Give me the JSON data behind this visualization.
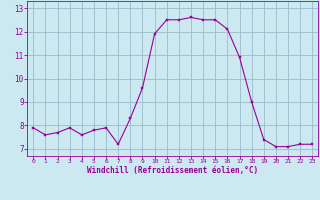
{
  "hours": [
    0,
    1,
    2,
    3,
    4,
    5,
    6,
    7,
    8,
    9,
    10,
    11,
    12,
    13,
    14,
    15,
    16,
    17,
    18,
    19,
    20,
    21,
    22,
    23
  ],
  "values": [
    7.9,
    7.6,
    7.7,
    7.9,
    7.6,
    7.8,
    7.9,
    7.2,
    8.3,
    9.6,
    11.9,
    12.5,
    12.5,
    12.6,
    12.5,
    12.5,
    12.1,
    10.9,
    9.0,
    7.4,
    7.1,
    7.1,
    7.2,
    7.2
  ],
  "line_color": "#990099",
  "marker_color": "#990099",
  "bg_color": "#cce8f0",
  "grid_color": "#99bbcc",
  "xlabel": "Windchill (Refroidissement éolien,°C)",
  "xlabel_color": "#990099",
  "tick_color": "#990099",
  "ylim": [
    6.7,
    13.3
  ],
  "xlim": [
    -0.5,
    23.5
  ],
  "yticks": [
    7,
    8,
    9,
    10,
    11,
    12,
    13
  ],
  "xticks": [
    0,
    1,
    2,
    3,
    4,
    5,
    6,
    7,
    8,
    9,
    10,
    11,
    12,
    13,
    14,
    15,
    16,
    17,
    18,
    19,
    20,
    21,
    22,
    23
  ]
}
